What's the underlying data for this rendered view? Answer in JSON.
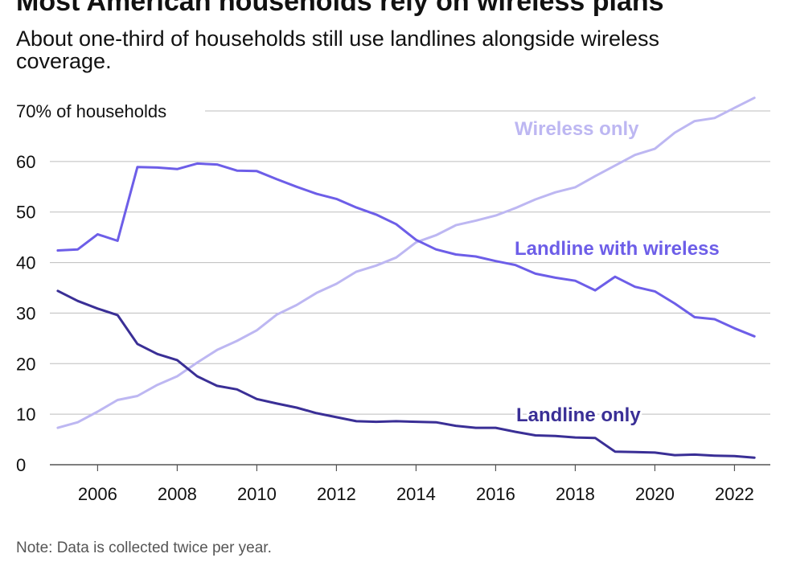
{
  "chart_data": {
    "type": "line",
    "title": "Most American households rely on wireless plans",
    "subtitle": "About one-third of households still use landlines alongside wireless coverage.",
    "note": "Note: Data is collected twice per year.",
    "ylabel": "% of households",
    "ylim": [
      0,
      70
    ],
    "yticks": [
      0,
      10,
      20,
      30,
      40,
      50,
      60,
      70
    ],
    "ytick_labels": [
      "0",
      "10",
      "20",
      "30",
      "40",
      "50",
      "60",
      "70% of households"
    ],
    "xlim": [
      2004.8,
      2022.9
    ],
    "xticks": [
      2006,
      2008,
      2010,
      2012,
      2014,
      2016,
      2018,
      2020,
      2022
    ],
    "xtick_labels": [
      "2006",
      "2008",
      "2010",
      "2012",
      "2014",
      "2016",
      "2018",
      "2020",
      "2022"
    ],
    "x": [
      2005.0,
      2005.5,
      2006.0,
      2006.5,
      2007.0,
      2007.5,
      2008.0,
      2008.5,
      2009.0,
      2009.5,
      2010.0,
      2010.5,
      2011.0,
      2011.5,
      2012.0,
      2012.5,
      2013.0,
      2013.5,
      2014.0,
      2014.5,
      2015.0,
      2015.5,
      2016.0,
      2016.5,
      2017.0,
      2017.5,
      2018.0,
      2018.5,
      2019.0,
      2019.5,
      2020.0,
      2020.5,
      2021.0,
      2021.5,
      2022.0,
      2022.5
    ],
    "series": [
      {
        "name": "Wireless only",
        "color": "#bdb7f2",
        "values": [
          7.3,
          8.4,
          10.5,
          12.8,
          13.6,
          15.8,
          17.5,
          20.2,
          22.7,
          24.5,
          26.6,
          29.7,
          31.6,
          34.0,
          35.8,
          38.2,
          39.4,
          41.0,
          44.0,
          45.4,
          47.4,
          48.3,
          49.3,
          50.8,
          52.5,
          53.9,
          54.9,
          57.1,
          59.2,
          61.3,
          62.5,
          65.7,
          68.0,
          68.6,
          70.6,
          72.6
        ]
      },
      {
        "name": "Landline with wireless",
        "color": "#6d5ee8",
        "values": [
          42.4,
          42.6,
          45.6,
          44.3,
          58.9,
          58.8,
          58.5,
          59.6,
          59.4,
          58.2,
          58.1,
          56.5,
          55.0,
          53.6,
          52.6,
          50.9,
          49.5,
          47.6,
          44.5,
          42.6,
          41.6,
          41.2,
          40.3,
          39.5,
          37.8,
          37.0,
          36.4,
          34.5,
          37.2,
          35.2,
          34.3,
          31.9,
          29.2,
          28.8,
          27.0,
          25.4
        ]
      },
      {
        "name": "Landline only",
        "color": "#3a2f96",
        "values": [
          34.4,
          32.4,
          30.9,
          29.6,
          23.9,
          21.9,
          20.7,
          17.5,
          15.6,
          14.9,
          13.0,
          12.1,
          11.3,
          10.2,
          9.4,
          8.6,
          8.5,
          8.6,
          8.5,
          8.4,
          7.7,
          7.3,
          7.3,
          6.5,
          5.8,
          5.7,
          5.4,
          5.3,
          2.6,
          2.5,
          2.4,
          1.9,
          2.0,
          1.8,
          1.7,
          1.4
        ]
      }
    ],
    "grid": true,
    "legend": "inline labels"
  }
}
